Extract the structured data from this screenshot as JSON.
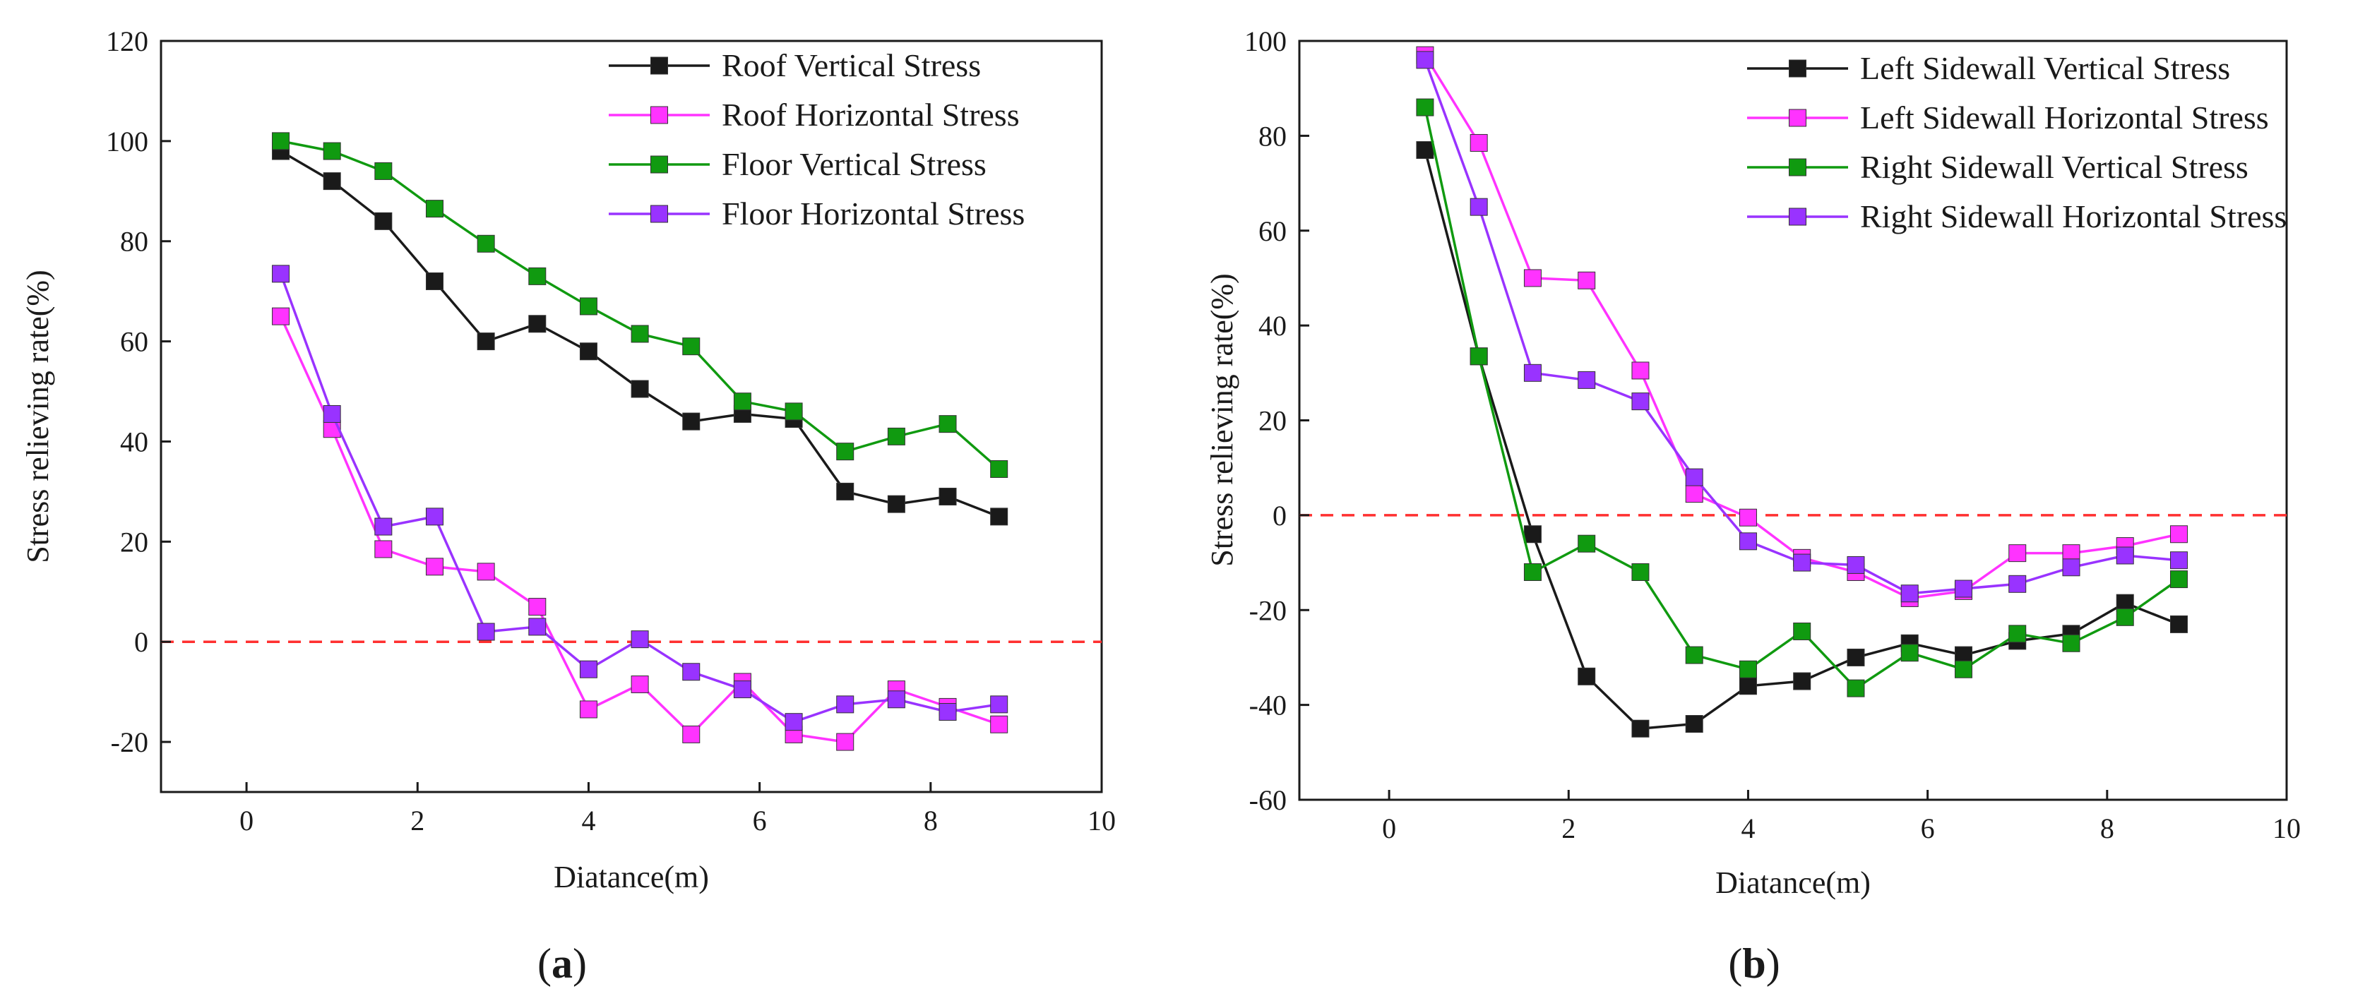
{
  "chart_data": [
    {
      "type": "line",
      "panel_label": {
        "open": "(",
        "letter": "a",
        "close": ")"
      },
      "xlabel": "Diatance(m)",
      "ylabel": "Stress relieving rate(%)",
      "xlim": [
        -1,
        10
      ],
      "ylim": [
        -30,
        120
      ],
      "xticks": [
        0,
        2,
        4,
        6,
        8,
        10
      ],
      "yticks": [
        -20,
        0,
        20,
        40,
        60,
        80,
        100,
        120
      ],
      "reference_line": {
        "y": 0,
        "color": "#ff3030",
        "style": "dashed"
      },
      "legend_position": "top-right",
      "x": [
        0.4,
        1.0,
        1.6,
        2.2,
        2.8,
        3.4,
        4.0,
        4.6,
        5.2,
        5.8,
        6.4,
        7.0,
        7.6,
        8.2,
        8.8
      ],
      "series": [
        {
          "name": "Roof Vertical Stress",
          "color": "#1a1a1a",
          "values": [
            98,
            92,
            84,
            72,
            60,
            63.5,
            58,
            50.5,
            44,
            45.5,
            44.5,
            30,
            27.5,
            29,
            25
          ]
        },
        {
          "name": "Roof Horizontal Stress",
          "color": "#ff33ff",
          "values": [
            65,
            42.5,
            18.5,
            15,
            14,
            7,
            -13.5,
            -8.5,
            -18.5,
            -8,
            -18.5,
            -20,
            -9.5,
            -13,
            -16.5
          ]
        },
        {
          "name": "Floor Vertical Stress",
          "color": "#109a10",
          "values": [
            100,
            98,
            94,
            86.5,
            79.5,
            73,
            67,
            61.5,
            59,
            48,
            46,
            38,
            41,
            43.5,
            34.5
          ]
        },
        {
          "name": "Floor Horizontal Stress",
          "color": "#9933ff",
          "values": [
            73.5,
            45.5,
            23,
            25,
            2,
            3,
            -5.5,
            0.5,
            -6,
            -9.5,
            -16,
            -12.5,
            -11.5,
            -14,
            -12.5
          ]
        }
      ]
    },
    {
      "type": "line",
      "panel_label": {
        "open": "(",
        "letter": "b",
        "close": ")"
      },
      "xlabel": "Diatance(m)",
      "ylabel": "Stress relieving rate(%)",
      "xlim": [
        -1,
        10
      ],
      "ylim": [
        -60,
        100
      ],
      "xticks": [
        0,
        2,
        4,
        6,
        8,
        10
      ],
      "yticks": [
        -60,
        -40,
        -20,
        0,
        20,
        40,
        60,
        80,
        100
      ],
      "reference_line": {
        "y": 0,
        "color": "#ff3030",
        "style": "dashed"
      },
      "legend_position": "top-right",
      "x": [
        0.4,
        1.0,
        1.6,
        2.2,
        2.8,
        3.4,
        4.0,
        4.6,
        5.2,
        5.8,
        6.4,
        7.0,
        7.6,
        8.2,
        8.8
      ],
      "series": [
        {
          "name": "Left Sidewall Vertical Stress",
          "color": "#1a1a1a",
          "values": [
            77,
            33.5,
            -4,
            -34,
            -45,
            -44,
            -36,
            -35,
            -30,
            -27,
            -29.5,
            -26.5,
            -25,
            -18.5,
            -23
          ]
        },
        {
          "name": "Left Sidewall Horizontal Stress",
          "color": "#ff33ff",
          "values": [
            97,
            78.5,
            50,
            49.5,
            30.5,
            4.5,
            -0.5,
            -9,
            -12,
            -17.5,
            -16,
            -8,
            -8,
            -6.5,
            -4
          ]
        },
        {
          "name": "Right Sidewall Vertical Stress",
          "color": "#109a10",
          "values": [
            86,
            33.5,
            -12,
            -6,
            -12,
            -29.5,
            -32.5,
            -24.5,
            -36.5,
            -29,
            -32.5,
            -25,
            -27,
            -21.5,
            -13.5
          ]
        },
        {
          "name": "Right Sidewall Horizontal Stress",
          "color": "#9933ff",
          "values": [
            96,
            65,
            30,
            28.5,
            24,
            8,
            -5.5,
            -10,
            -10.5,
            -16.5,
            -15.5,
            -14.5,
            -11,
            -8.5,
            -9.5
          ]
        }
      ]
    }
  ]
}
